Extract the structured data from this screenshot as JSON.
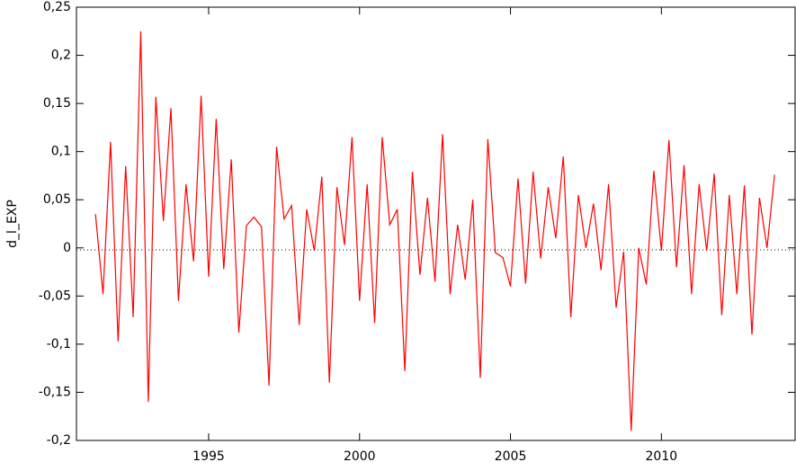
{
  "chart_data": {
    "type": "line",
    "ylabel": "d_l_EXP",
    "color": "#ff0000",
    "x": [
      1991.25,
      1991.5,
      1991.75,
      1992,
      1992.25,
      1992.5,
      1992.75,
      1993,
      1993.25,
      1993.5,
      1993.75,
      1994,
      1994.25,
      1994.5,
      1994.75,
      1995,
      1995.25,
      1995.5,
      1995.75,
      1996,
      1996.25,
      1996.5,
      1996.75,
      1997,
      1997.25,
      1997.5,
      1997.75,
      1998,
      1998.25,
      1998.5,
      1998.75,
      1999,
      1999.25,
      1999.5,
      1999.75,
      2000,
      2000.25,
      2000.5,
      2000.75,
      2001,
      2001.25,
      2001.5,
      2001.75,
      2002,
      2002.25,
      2002.5,
      2002.75,
      2003,
      2003.25,
      2003.5,
      2003.75,
      2004,
      2004.25,
      2004.5,
      2004.75,
      2005,
      2005.25,
      2005.5,
      2005.75,
      2006,
      2006.25,
      2006.5,
      2006.75,
      2007,
      2007.25,
      2007.5,
      2007.75,
      2008,
      2008.25,
      2008.5,
      2008.75,
      2009,
      2009.25,
      2009.5,
      2009.75,
      2010,
      2010.25,
      2010.5,
      2010.75,
      2011,
      2011.25,
      2011.5,
      2011.75,
      2012,
      2012.25,
      2012.5,
      2012.75,
      2013,
      2013.25,
      2013.5,
      2013.75
    ],
    "values": [
      0.035,
      -0.048,
      0.11,
      -0.097,
      0.085,
      -0.072,
      0.225,
      -0.16,
      0.157,
      0.028,
      0.145,
      -0.055,
      0.066,
      -0.014,
      0.158,
      -0.03,
      0.134,
      -0.022,
      0.092,
      -0.088,
      0.023,
      0.032,
      0.022,
      -0.143,
      0.105,
      0.03,
      0.044,
      -0.08,
      0.04,
      -0.003,
      0.074,
      -0.14,
      0.063,
      0.003,
      0.115,
      -0.055,
      0.066,
      -0.078,
      0.115,
      0.024,
      0.04,
      -0.128,
      0.079,
      -0.028,
      0.052,
      -0.035,
      0.118,
      -0.048,
      0.024,
      -0.033,
      0.05,
      -0.135,
      0.113,
      -0.005,
      -0.01,
      -0.04,
      0.072,
      -0.037,
      0.079,
      -0.011,
      0.063,
      0.01,
      0.095,
      -0.072,
      0.055,
      0.0,
      0.046,
      -0.023,
      0.066,
      -0.062,
      -0.004,
      -0.19,
      0.0,
      -0.038,
      0.08,
      -0.003,
      0.112,
      -0.02,
      0.086,
      -0.048,
      0.066,
      -0.003,
      0.077,
      -0.07,
      0.055,
      -0.048,
      0.065,
      -0.09,
      0.052,
      0.0,
      0.076
    ],
    "xlim": [
      1990.62,
      2014.43
    ],
    "xticks": [
      1995,
      2000,
      2005,
      2010
    ],
    "ylim": [
      -0.2,
      0.25
    ],
    "yticks": [
      {
        "value": -0.2,
        "label": "-0,2"
      },
      {
        "value": -0.15,
        "label": "-0,15"
      },
      {
        "value": -0.1,
        "label": "-0,1"
      },
      {
        "value": -0.05,
        "label": "-0,05"
      },
      0,
      {
        "value": 0.05,
        "label": "0,05"
      },
      {
        "value": 0.1,
        "label": "0,1"
      },
      {
        "value": 0.15,
        "label": "0,15"
      },
      {
        "value": 0.2,
        "label": "0,2"
      },
      {
        "value": 0.25,
        "label": "0,25"
      }
    ]
  }
}
